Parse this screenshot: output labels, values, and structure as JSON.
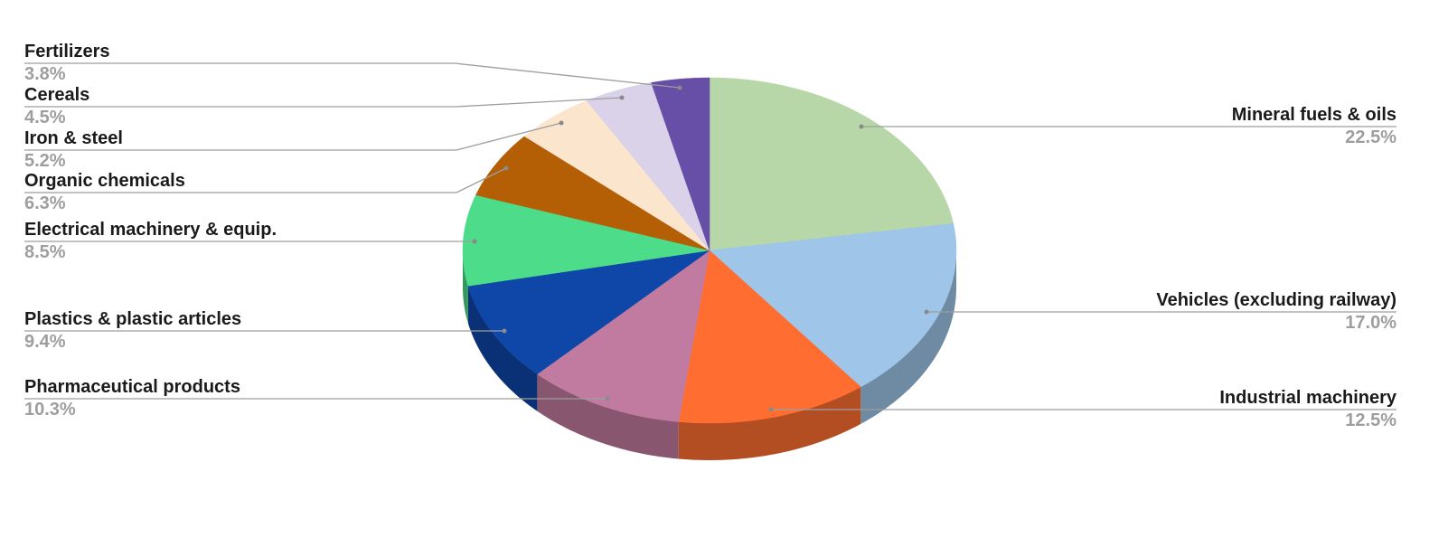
{
  "chart_data": {
    "type": "pie",
    "style": "3d",
    "start": "top, clockwise",
    "slices": [
      {
        "label": "Mineral fuels & oils",
        "value": 22.5,
        "pct_label": "22.5%",
        "color": "#b7d7a8",
        "side_color": "#7f9675",
        "side": "right"
      },
      {
        "label": "Vehicles (excluding railway)",
        "value": 17.0,
        "pct_label": "17.0%",
        "color": "#9fc5e8",
        "side_color": "#6f8aa3",
        "side": "right"
      },
      {
        "label": "Industrial machinery",
        "value": 12.5,
        "pct_label": "12.5%",
        "color": "#ff6d31",
        "side_color": "#b24e22",
        "side": "right"
      },
      {
        "label": "Pharmaceutical products",
        "value": 10.3,
        "pct_label": "10.3%",
        "color": "#c27ba0",
        "side_color": "#88566f",
        "side": "left"
      },
      {
        "label": "Plastics & plastic articles",
        "value": 9.4,
        "pct_label": "9.4%",
        "color": "#0f47a8",
        "side_color": "#0a3175",
        "side": "left"
      },
      {
        "label": "Electrical machinery & equip.",
        "value": 8.5,
        "pct_label": "8.5%",
        "color": "#4cdc8a",
        "side_color": "#35995f",
        "side": "left"
      },
      {
        "label": "Organic chemicals",
        "value": 6.3,
        "pct_label": "6.3%",
        "color": "#b45f06",
        "side_color": "#7e4304",
        "side": "left"
      },
      {
        "label": "Iron & steel",
        "value": 5.2,
        "pct_label": "5.2%",
        "color": "#fce5cd",
        "side_color": "#b0a08f",
        "side": "left"
      },
      {
        "label": "Cereals",
        "value": 4.5,
        "pct_label": "4.5%",
        "color": "#d9d2e9",
        "side_color": "#9893a3",
        "side": "left"
      },
      {
        "label": "Fertilizers",
        "value": 3.8,
        "pct_label": "3.8%",
        "color": "#674ea7",
        "side_color": "#483675",
        "side": "left"
      }
    ],
    "leader_line_color": "#9e9e9e"
  }
}
